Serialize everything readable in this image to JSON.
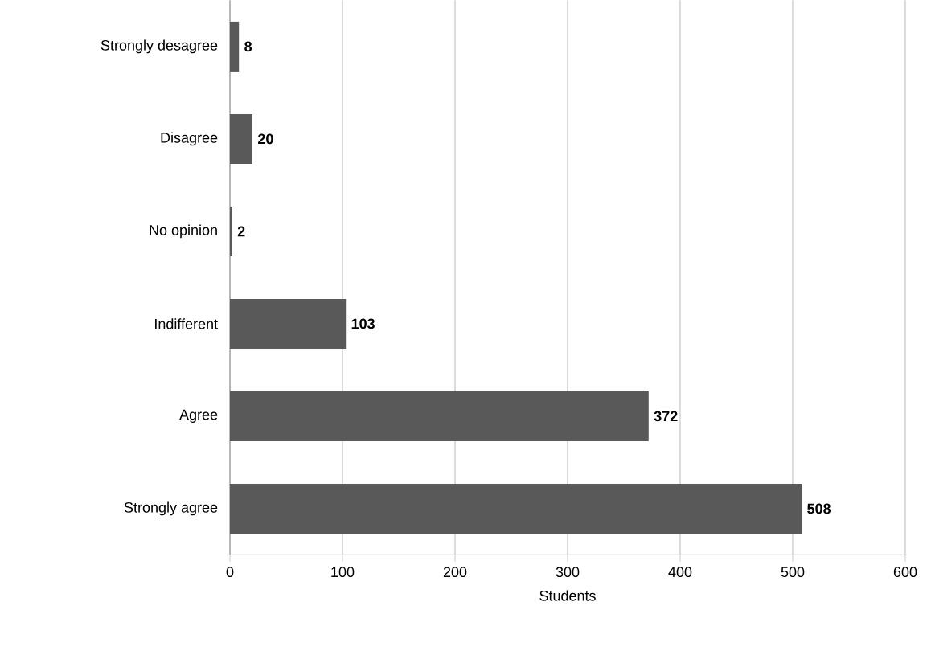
{
  "chart_data": {
    "type": "bar",
    "orientation": "horizontal",
    "xlabel": "Students",
    "categories": [
      "Strongly desagree",
      "Disagree",
      "No opinion",
      "Indifferent",
      "Agree",
      "Strongly agree"
    ],
    "values": [
      8,
      20,
      2,
      103,
      372,
      508
    ],
    "color": "#595959",
    "xlim": [
      0,
      600
    ],
    "xticks": [
      0,
      100,
      200,
      300,
      400,
      500,
      600
    ],
    "grid": "x",
    "data_labels": true
  }
}
